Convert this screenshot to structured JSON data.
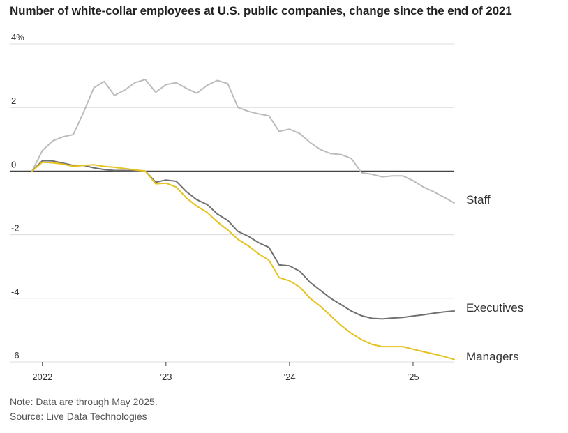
{
  "chart_data": {
    "type": "line",
    "title": "Number of white-collar employees at U.S. public companies, change since the end of 2021",
    "y_unit": "%",
    "ylim": [
      -6,
      4
    ],
    "yticks": [
      {
        "value": 4,
        "label": "4%"
      },
      {
        "value": 2,
        "label": "2"
      },
      {
        "value": 0,
        "label": "0"
      },
      {
        "value": -2,
        "label": "-2"
      },
      {
        "value": -4,
        "label": "-4"
      },
      {
        "value": -6,
        "label": "-6"
      }
    ],
    "xlim": [
      "2021-12",
      "2025-05"
    ],
    "xticks": [
      {
        "value": "2022-01",
        "label": "2022"
      },
      {
        "value": "2023-01",
        "label": "’23"
      },
      {
        "value": "2024-01",
        "label": "’24"
      },
      {
        "value": "2025-01",
        "label": "’25"
      }
    ],
    "grid": true,
    "x": [
      "2021-12",
      "2022-01",
      "2022-02",
      "2022-03",
      "2022-04",
      "2022-05",
      "2022-06",
      "2022-07",
      "2022-08",
      "2022-09",
      "2022-10",
      "2022-11",
      "2022-12",
      "2023-01",
      "2023-02",
      "2023-03",
      "2023-04",
      "2023-05",
      "2023-06",
      "2023-07",
      "2023-08",
      "2023-09",
      "2023-10",
      "2023-11",
      "2023-12",
      "2024-01",
      "2024-02",
      "2024-03",
      "2024-04",
      "2024-05",
      "2024-06",
      "2024-07",
      "2024-08",
      "2024-09",
      "2024-10",
      "2024-11",
      "2024-12",
      "2025-01",
      "2025-02",
      "2025-03",
      "2025-04",
      "2025-05"
    ],
    "series": [
      {
        "name": "Staff",
        "color": "#bcbcbc",
        "values": [
          0,
          0.65,
          0.95,
          1.08,
          1.15,
          1.85,
          2.62,
          2.82,
          2.38,
          2.55,
          2.78,
          2.88,
          2.48,
          2.72,
          2.78,
          2.6,
          2.45,
          2.7,
          2.85,
          2.75,
          2.0,
          1.88,
          1.8,
          1.74,
          1.25,
          1.32,
          1.18,
          0.9,
          0.68,
          0.55,
          0.52,
          0.4,
          -0.05,
          -0.1,
          -0.18,
          -0.15,
          -0.15,
          -0.3,
          -0.5,
          -0.65,
          -0.82,
          -1.0
        ]
      },
      {
        "name": "Executives",
        "color": "#707070",
        "values": [
          0,
          0.33,
          0.32,
          0.25,
          0.18,
          0.18,
          0.1,
          0.05,
          0.02,
          0.02,
          0.01,
          0.0,
          -0.35,
          -0.28,
          -0.32,
          -0.65,
          -0.9,
          -1.05,
          -1.35,
          -1.55,
          -1.9,
          -2.05,
          -2.25,
          -2.4,
          -2.95,
          -2.98,
          -3.15,
          -3.5,
          -3.75,
          -4.0,
          -4.2,
          -4.4,
          -4.55,
          -4.63,
          -4.65,
          -4.62,
          -4.6,
          -4.56,
          -4.52,
          -4.47,
          -4.43,
          -4.4
        ]
      },
      {
        "name": "Managers",
        "color": "#e6c21e",
        "values": [
          0,
          0.28,
          0.26,
          0.22,
          0.15,
          0.18,
          0.2,
          0.15,
          0.12,
          0.08,
          0.04,
          0.0,
          -0.4,
          -0.38,
          -0.5,
          -0.85,
          -1.1,
          -1.3,
          -1.6,
          -1.85,
          -2.15,
          -2.35,
          -2.6,
          -2.8,
          -3.35,
          -3.45,
          -3.65,
          -4.0,
          -4.25,
          -4.55,
          -4.85,
          -5.1,
          -5.3,
          -5.45,
          -5.52,
          -5.52,
          -5.52,
          -5.6,
          -5.68,
          -5.75,
          -5.83,
          -5.92
        ]
      }
    ],
    "end_labels": [
      "Staff",
      "Executives",
      "Managers"
    ]
  },
  "notes": {
    "note": "Note: Data are through May 2025.",
    "source": "Source: Live Data Technologies"
  }
}
